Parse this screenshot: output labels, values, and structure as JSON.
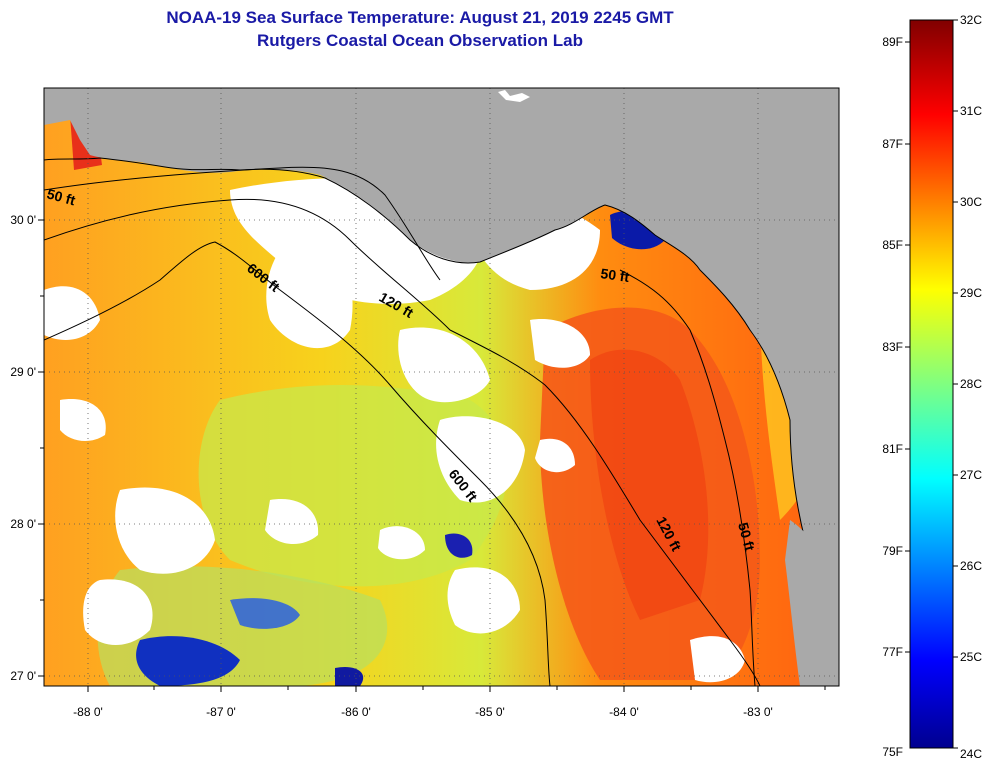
{
  "header": {
    "title_line1": "NOAA-19 Sea Surface Temperature:  August 21, 2019 2245 GMT",
    "title_line2": "Rutgers Coastal Ocean Observation Lab"
  },
  "map": {
    "lon_ticks": [
      "-88 0'",
      "-87 0'",
      "-86 0'",
      "-85 0'",
      "-84 0'",
      "-83 0'"
    ],
    "lat_ticks": [
      "30 0'",
      "29 0'",
      "28 0'",
      "27 0'"
    ],
    "contour_labels": [
      "50 ft",
      "600 ft",
      "120 ft",
      "50 ft",
      "600 ft",
      "120 ft",
      "50 ft"
    ],
    "colors": {
      "land": "#a9a9a9",
      "cloud": "#ffffff",
      "grid": "#555555"
    }
  },
  "colorbar": {
    "f_labels": [
      "89F",
      "87F",
      "85F",
      "83F",
      "81F",
      "79F",
      "77F",
      "75F"
    ],
    "c_labels": [
      "32C",
      "31C",
      "30C",
      "29C",
      "28C",
      "27C",
      "26C",
      "25C",
      "24C"
    ],
    "range_c": [
      24,
      32
    ]
  }
}
